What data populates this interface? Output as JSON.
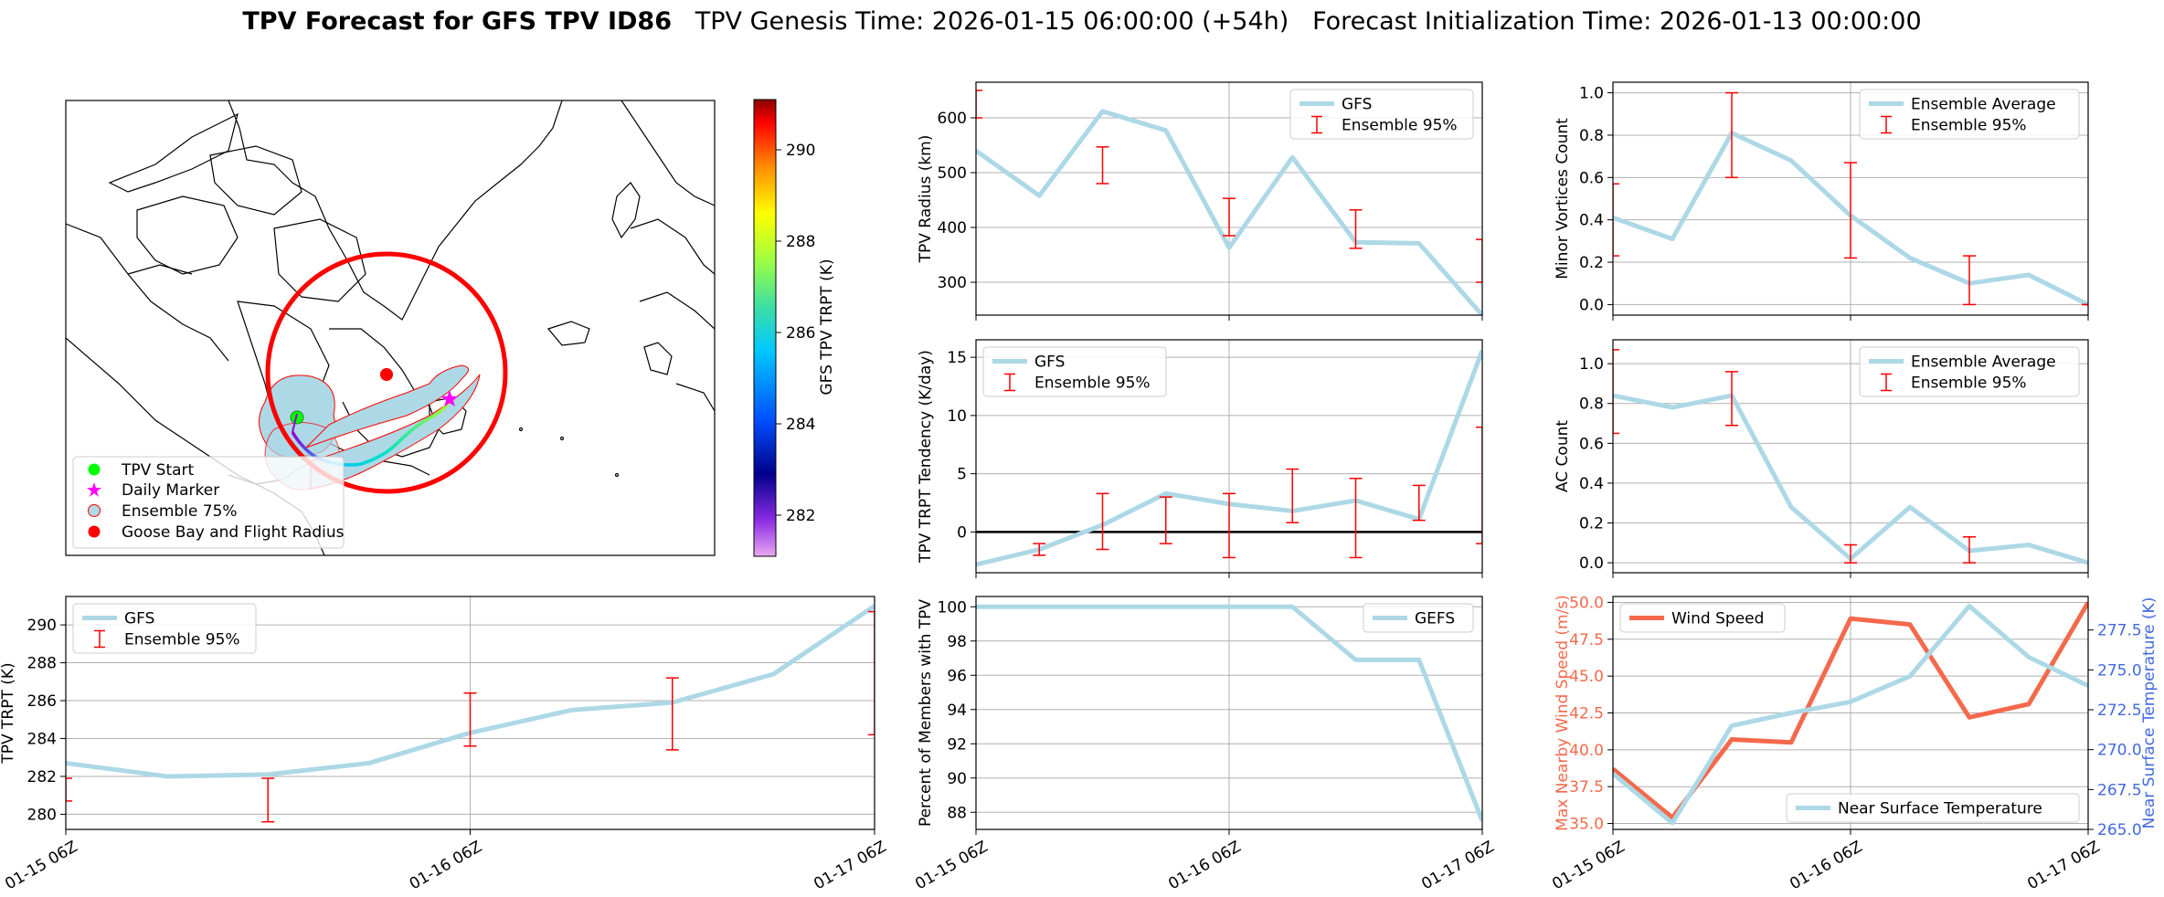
{
  "figure": {
    "title_bold": "TPV Forecast for GFS TPV ID86",
    "title_genesis": "TPV Genesis Time: 2026-01-15 06:00:00 (+54h)",
    "title_init": "Forecast Initialization Time: 2026-01-13 00:00:00"
  },
  "map": {
    "legend": [
      "TPV Start",
      "Daily Marker",
      "Ensemble 75%",
      "Goose Bay and Flight Radius"
    ],
    "colorbar_label": "GFS TPV TRPT (K)",
    "colorbar_ticks": [
      "282",
      "284",
      "286",
      "288",
      "290"
    ],
    "colorbar_min": 281.1,
    "colorbar_max": 291.1
  },
  "colors": {
    "series": "#add8e6",
    "error": "#ff0000",
    "wind": "#f4694c",
    "temp_axis": "#4169e1",
    "gefs": "#add8e6"
  },
  "chart_data": [
    {
      "id": "radius",
      "type": "line",
      "ylabel": "TPV Radius (km)",
      "x": [
        0,
        1,
        2,
        3,
        4,
        5,
        6,
        7,
        8
      ],
      "series": [
        {
          "name": "GFS",
          "values": [
            540,
            458,
            612,
            577,
            363,
            528,
            373,
            371,
            240
          ]
        }
      ],
      "errorbars": [
        {
          "x": 0,
          "low": 600,
          "high": 650
        },
        {
          "x": 2,
          "low": 480,
          "high": 547
        },
        {
          "x": 4,
          "low": 385,
          "high": 453
        },
        {
          "x": 6,
          "low": 362,
          "high": 432
        },
        {
          "x": 8,
          "low": 300,
          "high": 378
        }
      ],
      "ylim": [
        240,
        665
      ],
      "yticks": [
        300,
        400,
        500,
        600
      ],
      "legend": [
        "GFS",
        "Ensemble 95%"
      ],
      "legend_pos": "upper right"
    },
    {
      "id": "minor",
      "type": "line",
      "ylabel": "Minor Vortices Count",
      "x": [
        0,
        1,
        2,
        3,
        4,
        5,
        6,
        7,
        8
      ],
      "series": [
        {
          "name": "Ensemble Average",
          "values": [
            0.41,
            0.31,
            0.81,
            0.68,
            0.42,
            0.22,
            0.1,
            0.14,
            0.0
          ]
        }
      ],
      "errorbars": [
        {
          "x": 0,
          "low": 0.23,
          "high": 0.57
        },
        {
          "x": 2,
          "low": 0.6,
          "high": 1.0
        },
        {
          "x": 4,
          "low": 0.22,
          "high": 0.67
        },
        {
          "x": 6,
          "low": 0.0,
          "high": 0.23
        },
        {
          "x": 8,
          "low": 0.0,
          "high": 0.0
        }
      ],
      "ylim": [
        -0.05,
        1.05
      ],
      "yticks": [
        0.0,
        0.2,
        0.4,
        0.6,
        0.8,
        1.0
      ],
      "ytick_labels": [
        "0.0",
        "0.2",
        "0.4",
        "0.6",
        "0.8",
        "1.0"
      ],
      "legend": [
        "Ensemble Average",
        "Ensemble 95%"
      ],
      "legend_pos": "upper right"
    },
    {
      "id": "tendency",
      "type": "line",
      "ylabel": "TPV TRPT Tendency (K/day)",
      "x": [
        0,
        1,
        2,
        3,
        4,
        5,
        6,
        7,
        8
      ],
      "series": [
        {
          "name": "GFS",
          "values": [
            -2.8,
            -1.5,
            0.6,
            3.3,
            2.4,
            1.8,
            2.7,
            1.1,
            15.6
          ]
        }
      ],
      "errorbars": [
        {
          "x": 1,
          "low": -2.0,
          "high": -1.0
        },
        {
          "x": 2,
          "low": -1.5,
          "high": 3.3
        },
        {
          "x": 3,
          "low": -1.0,
          "high": 3.0
        },
        {
          "x": 4,
          "low": -2.2,
          "high": 3.3
        },
        {
          "x": 5,
          "low": 0.8,
          "high": 5.4
        },
        {
          "x": 6,
          "low": -2.2,
          "high": 4.6
        },
        {
          "x": 7,
          "low": 1.0,
          "high": 4.0
        },
        {
          "x": 8,
          "low": -1.0,
          "high": 9.0
        }
      ],
      "zero_line": true,
      "ylim": [
        -3.5,
        16.5
      ],
      "yticks": [
        0,
        5,
        10,
        15
      ],
      "legend": [
        "GFS",
        "Ensemble 95%"
      ],
      "legend_pos": "upper left"
    },
    {
      "id": "ac",
      "type": "line",
      "ylabel": "AC Count",
      "x": [
        0,
        1,
        2,
        3,
        4,
        5,
        6,
        7,
        8
      ],
      "series": [
        {
          "name": "Ensemble Average",
          "values": [
            0.84,
            0.78,
            0.84,
            0.28,
            0.02,
            0.28,
            0.06,
            0.09,
            0.0
          ]
        }
      ],
      "errorbars": [
        {
          "x": 0,
          "low": 0.65,
          "high": 1.07
        },
        {
          "x": 2,
          "low": 0.69,
          "high": 0.96
        },
        {
          "x": 4,
          "low": 0.0,
          "high": 0.09
        },
        {
          "x": 6,
          "low": 0.0,
          "high": 0.13
        }
      ],
      "ylim": [
        -0.05,
        1.12
      ],
      "yticks": [
        0.0,
        0.2,
        0.4,
        0.6,
        0.8,
        1.0
      ],
      "ytick_labels": [
        "0.0",
        "0.2",
        "0.4",
        "0.6",
        "0.8",
        "1.0"
      ],
      "legend": [
        "Ensemble Average",
        "Ensemble 95%"
      ],
      "legend_pos": "upper right"
    },
    {
      "id": "trpt",
      "type": "line",
      "ylabel": "TPV TRPT (K)",
      "x": [
        0,
        1,
        2,
        3,
        4,
        5,
        6,
        7,
        8
      ],
      "series": [
        {
          "name": "GFS",
          "values": [
            282.7,
            282.0,
            282.1,
            282.7,
            284.3,
            285.5,
            285.9,
            287.4,
            291.0
          ]
        }
      ],
      "errorbars": [
        {
          "x": 0,
          "low": 280.7,
          "high": 281.9
        },
        {
          "x": 2,
          "low": 279.6,
          "high": 281.9
        },
        {
          "x": 4,
          "low": 283.6,
          "high": 286.4
        },
        {
          "x": 6,
          "low": 283.4,
          "high": 287.2
        },
        {
          "x": 8,
          "low": 284.2,
          "high": 290.7
        }
      ],
      "ylim": [
        279.2,
        291.5
      ],
      "yticks": [
        280,
        282,
        284,
        286,
        288,
        290
      ],
      "legend": [
        "GFS",
        "Ensemble 95%"
      ],
      "legend_pos": "upper left"
    },
    {
      "id": "percent",
      "type": "line",
      "ylabel": "Percent of Members with TPV",
      "x": [
        0,
        1,
        2,
        3,
        4,
        5,
        6,
        7,
        8
      ],
      "series": [
        {
          "name": "GEFS",
          "values": [
            100,
            100,
            100,
            100,
            100,
            100,
            96.9,
            96.9,
            87.5
          ]
        }
      ],
      "ylim": [
        87.0,
        100.6
      ],
      "yticks": [
        88,
        90,
        92,
        94,
        96,
        98,
        100
      ],
      "legend": [
        "GEFS"
      ],
      "legend_pos": "upper right"
    },
    {
      "id": "wind",
      "type": "line",
      "ylabel": "Max Nearby Wind Speed (m/s)",
      "ylabel2": "Near Surface Temperature (K)",
      "x": [
        0,
        1,
        2,
        3,
        4,
        5,
        6,
        7,
        8
      ],
      "series": [
        {
          "name": "Wind Speed",
          "axis": "left",
          "values": [
            38.7,
            35.4,
            40.7,
            40.5,
            48.9,
            48.5,
            42.2,
            43.1,
            50.0
          ]
        },
        {
          "name": "Near Surface Temperature",
          "axis": "right",
          "values": [
            268.5,
            265.4,
            271.5,
            272.3,
            273.0,
            274.6,
            279.0,
            275.8,
            274.0
          ]
        }
      ],
      "ylim": [
        34.6,
        50.4
      ],
      "yticks": [
        35.0,
        37.5,
        40.0,
        42.5,
        45.0,
        47.5,
        50.0
      ],
      "ytick_labels": [
        "35.0",
        "37.5",
        "40.0",
        "42.5",
        "45.0",
        "47.5",
        "50.0"
      ],
      "ylim2": [
        265.0,
        279.6
      ],
      "yticks2": [
        265.0,
        267.5,
        270.0,
        272.5,
        275.0,
        277.5
      ],
      "ytick_labels2": [
        "265.0",
        "267.5",
        "270.0",
        "272.5",
        "275.0",
        "277.5"
      ],
      "legend": [
        "Wind Speed"
      ],
      "legend2": [
        "Near Surface Temperature"
      ],
      "legend_pos": "upper left",
      "legend2_pos": "lower right"
    }
  ],
  "x_tick_labels": [
    "01-15 06Z",
    "01-16 06Z",
    "01-17 06Z"
  ]
}
